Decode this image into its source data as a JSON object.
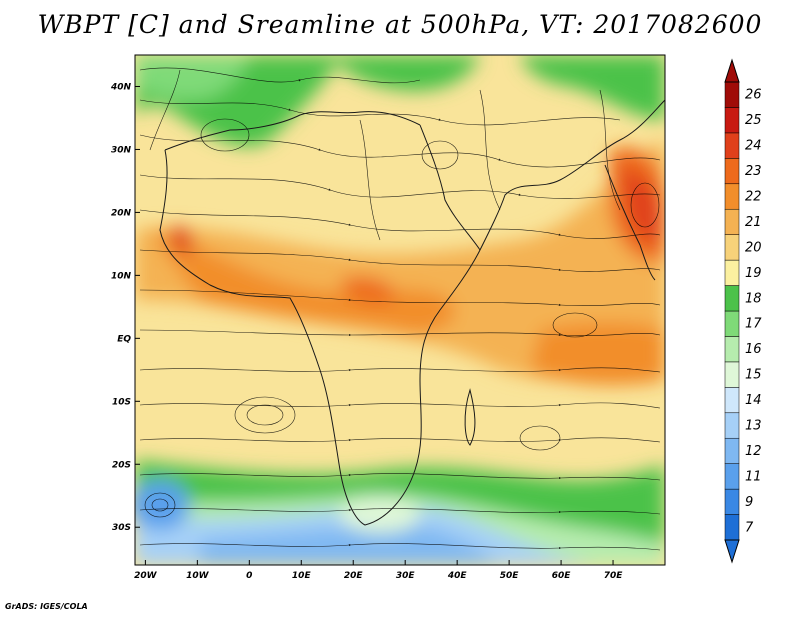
{
  "title": "WBPT [C] and Sreamline at 500hPa, VT: 2017082600",
  "credit": "GrADS: IGES/COLA",
  "map": {
    "lat_labels": [
      "40N",
      "30N",
      "20N",
      "10N",
      "EQ",
      "10S",
      "20S",
      "30S"
    ],
    "lat_values": [
      40,
      30,
      20,
      10,
      0,
      -10,
      -20,
      -30
    ],
    "lon_labels": [
      "20W",
      "10W",
      "0",
      "10E",
      "20E",
      "30E",
      "40E",
      "50E",
      "60E",
      "70E"
    ],
    "lon_values": [
      -20,
      -10,
      0,
      10,
      20,
      30,
      40,
      50,
      60,
      70
    ],
    "lon_range": [
      -22,
      80
    ],
    "lat_range": [
      -36,
      45
    ]
  },
  "colorbar": {
    "labels": [
      "7",
      "9",
      "11",
      "12",
      "13",
      "14",
      "15",
      "16",
      "17",
      "18",
      "19",
      "20",
      "21",
      "22",
      "23",
      "24",
      "25",
      "26"
    ],
    "colors": [
      "#1e6fd6",
      "#3a88e4",
      "#5aa0ec",
      "#7fb8f2",
      "#a6d0f7",
      "#cfe7fb",
      "#dff7d8",
      "#b6ecae",
      "#7fda78",
      "#4cc24a",
      "#fbf0a0",
      "#f7d27a",
      "#f4b253",
      "#f28e2b",
      "#ee6a1c",
      "#e0401b",
      "#c81a12",
      "#a00c08"
    ]
  }
}
